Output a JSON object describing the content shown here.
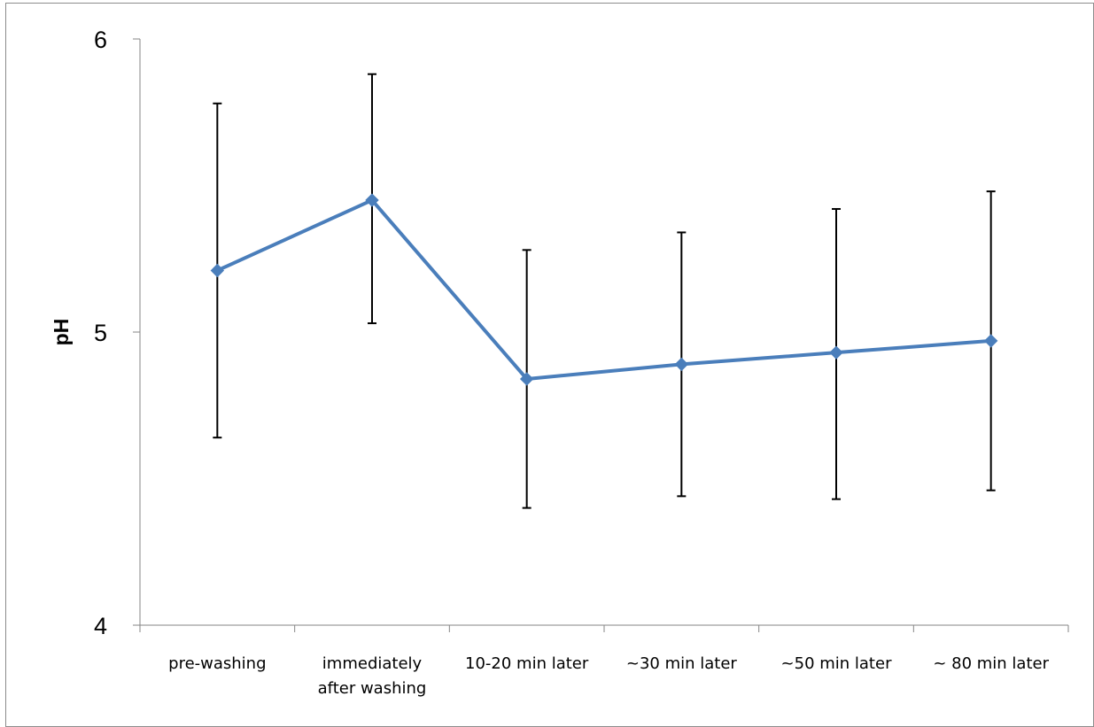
{
  "chart_data": {
    "type": "line",
    "title": "",
    "xlabel": "",
    "ylabel": "pH",
    "ylim": [
      4,
      6
    ],
    "yticks": [
      "4",
      "5",
      "6"
    ],
    "grid": false,
    "legend": "none",
    "categories": [
      [
        "pre-washing"
      ],
      [
        "immediately",
        "after washing"
      ],
      [
        "10-20 min later"
      ],
      [
        "~30 min later"
      ],
      [
        "~50 min later"
      ],
      [
        "~ 80 min later"
      ]
    ],
    "series": [
      {
        "color": "#4a7ebb",
        "marker": "diamond",
        "values": [
          5.21,
          5.45,
          4.84,
          4.89,
          4.93,
          4.97
        ],
        "error_upper": [
          5.78,
          5.88,
          5.28,
          5.34,
          5.42,
          5.48
        ],
        "error_lower": [
          4.64,
          5.03,
          4.4,
          4.44,
          4.43,
          4.46
        ]
      }
    ]
  }
}
